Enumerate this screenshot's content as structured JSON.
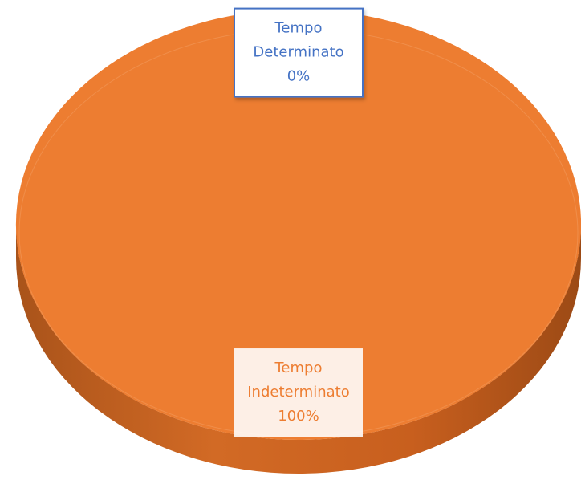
{
  "chart_data": {
    "type": "pie",
    "three_d": true,
    "categories": [
      "Tempo Determinato",
      "Tempo Indeterminato"
    ],
    "values": [
      0,
      100
    ],
    "value_labels": [
      "0%",
      "100%"
    ],
    "colors": [
      "#4472C4",
      "#ED7D31"
    ]
  }
}
